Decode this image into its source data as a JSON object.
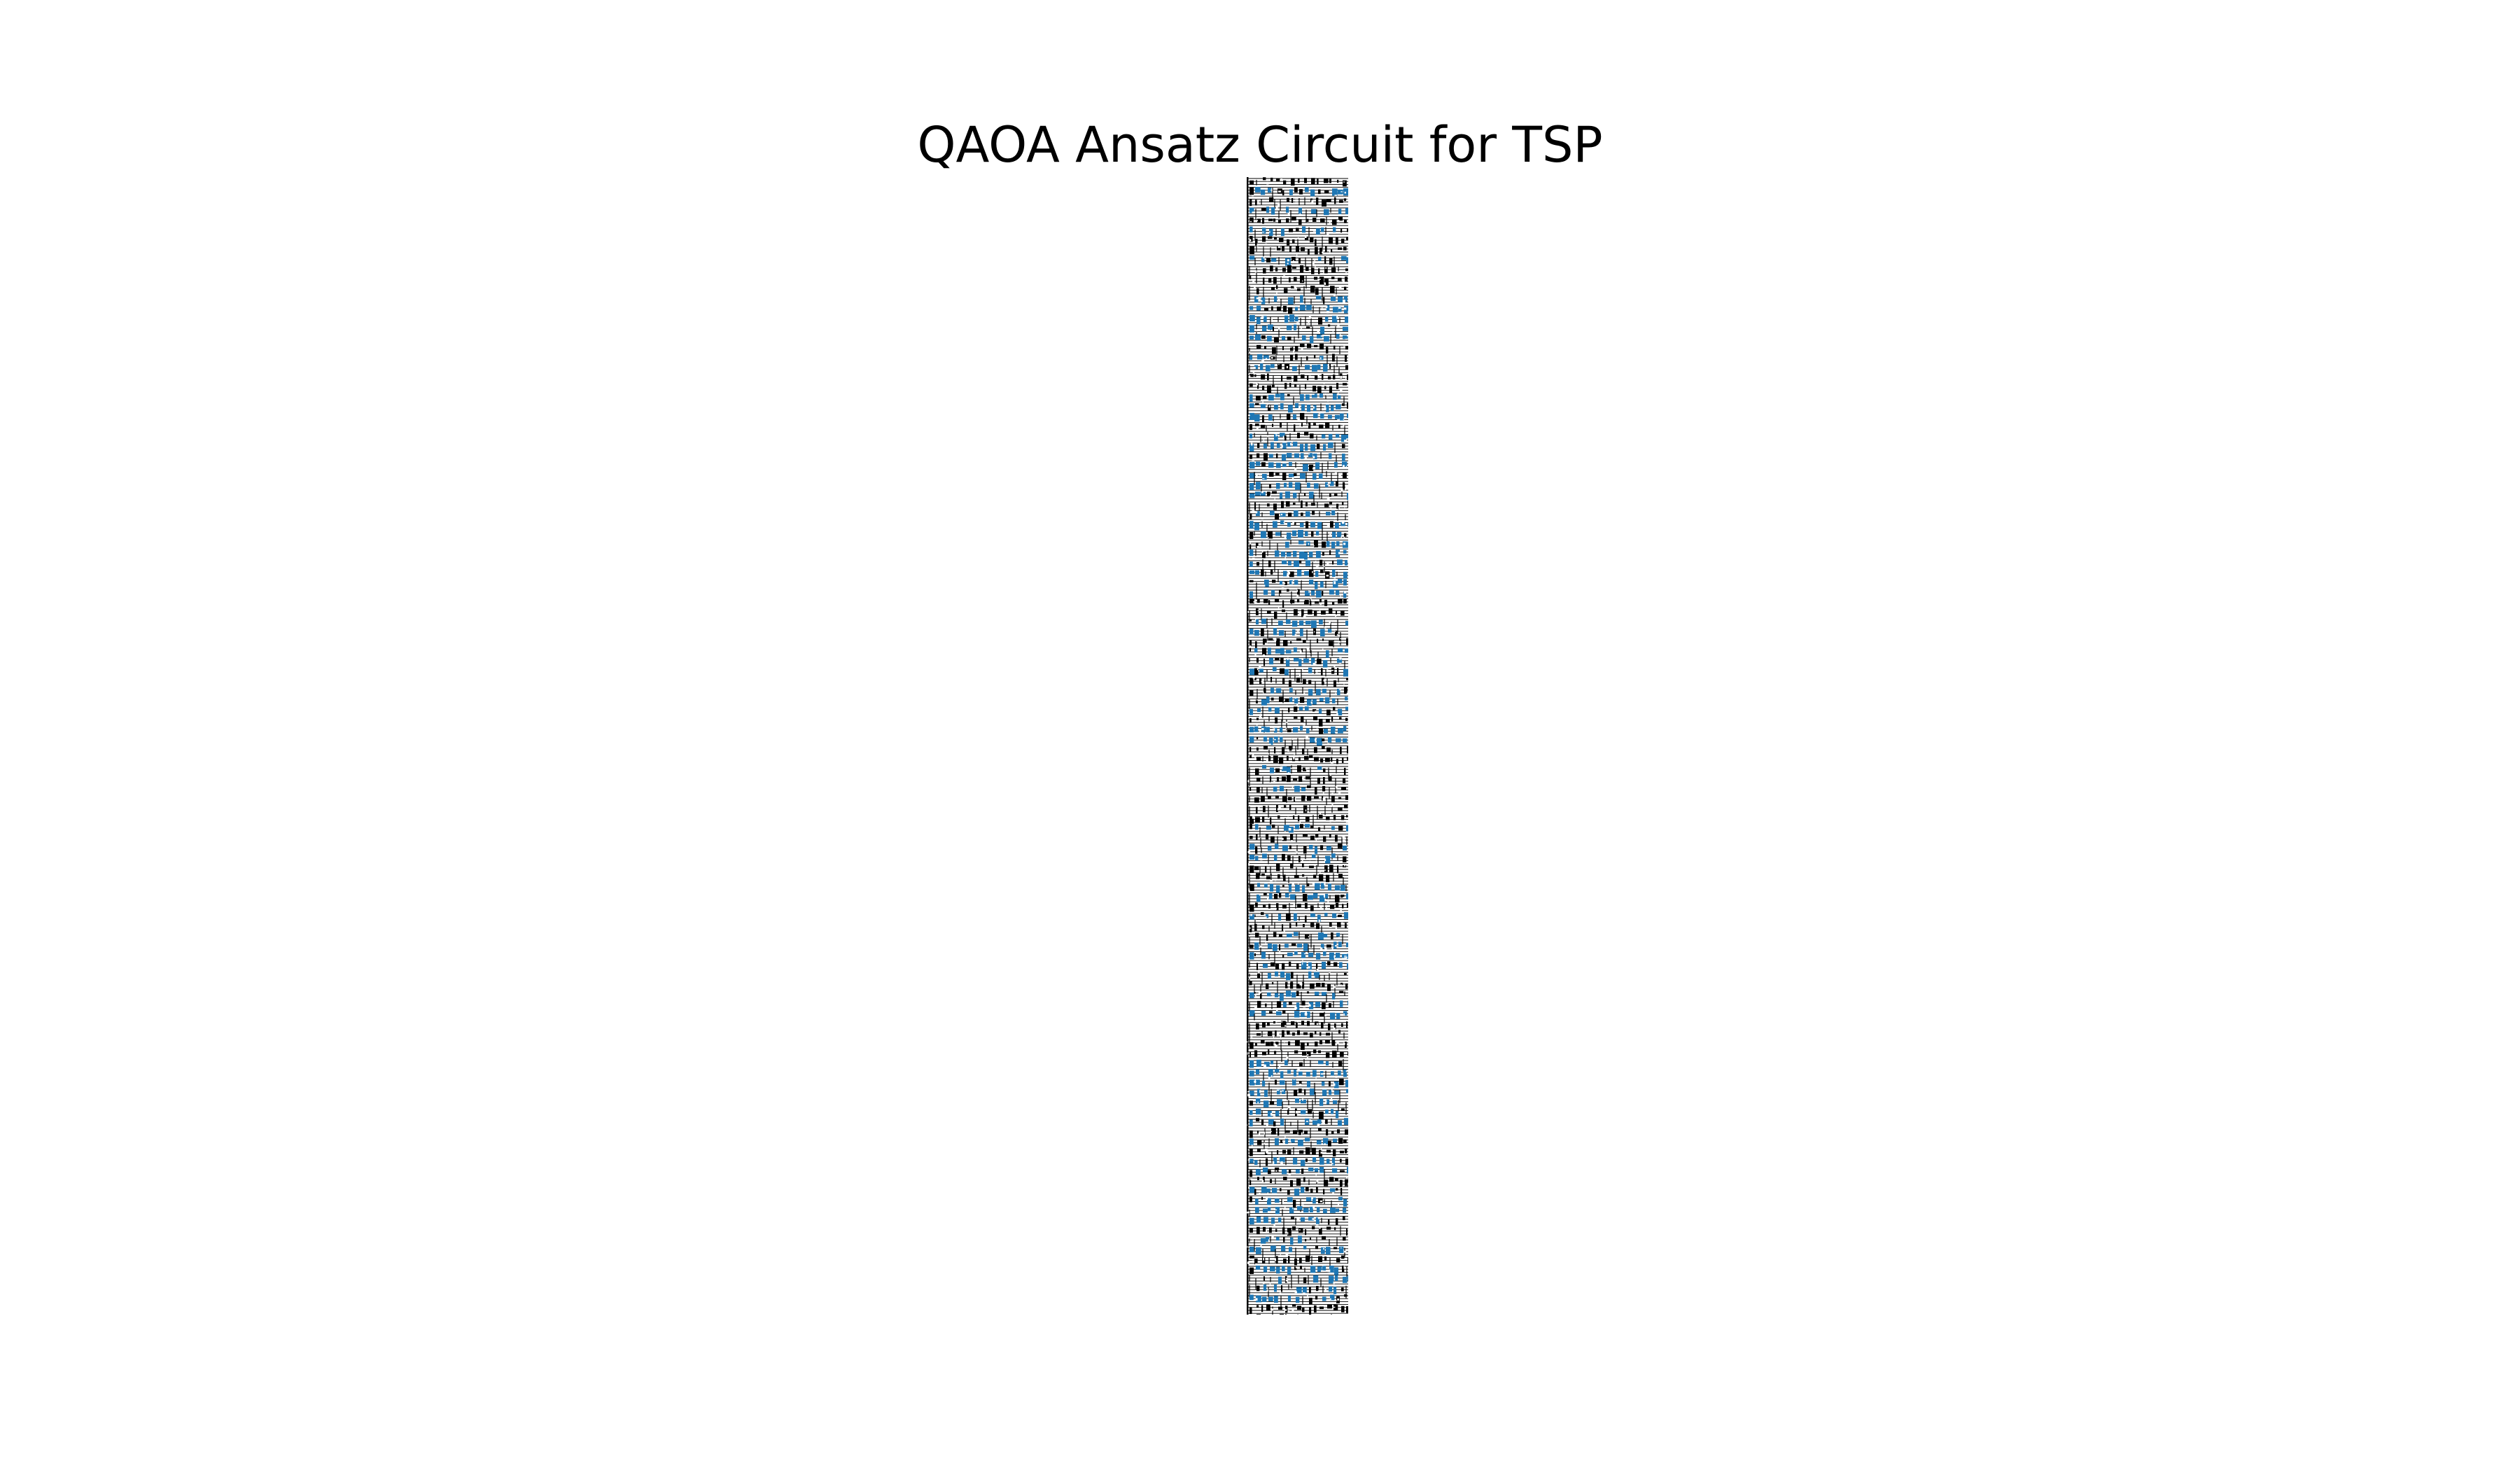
{
  "title": "QAOA Ansatz Circuit for TSP",
  "circuit": {
    "description_visible": "dense quantum circuit drawing",
    "colors": {
      "wire": "#000000",
      "gate_fill": "#1f77b4",
      "background": "#ffffff"
    }
  }
}
